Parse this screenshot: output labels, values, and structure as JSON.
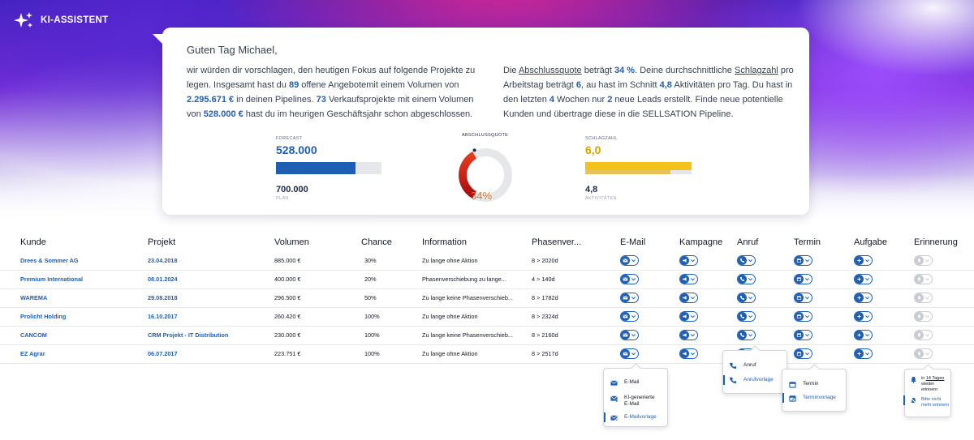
{
  "brand": {
    "name": "KI-ASSISTENT",
    "icon": "sparkles-icon"
  },
  "assistant": {
    "greeting": "Guten Tag Michael,",
    "left": {
      "t1": "wir würden dir vorschlagen, den heutigen Fokus auf folgende Projekte zu legen. Insgesamt hast du ",
      "open_offers": "89",
      "t2": " offene Angebotemit einem Volumen von ",
      "offer_volume": "2.295.671 €",
      "t3": " in deinen Pipelines. ",
      "sales_projects": "73",
      "t4": " Verkaufsprojekte mit einem Volumen von ",
      "closed_volume": "528.000 €",
      "t5": " hast du im heurigen Geschäftsjahr schon abgeschlossen."
    },
    "right": {
      "t1": "Die ",
      "closing_rate_term": "Abschlussquote",
      "t2": " beträgt ",
      "closing_rate": "34 %",
      "t3": ". Deine durchschnittliche ",
      "activity_term": "Schlagzahl",
      "t4": " pro Arbeitstag beträgt ",
      "activity_rate": "6",
      "t5": ", au hast im Schnitt ",
      "avg_activities": "4,8",
      "t6": " Aktivitäten pro Tag. Du hast in den letzten ",
      "weeks": "4",
      "t7": " Wochen nur ",
      "new_leads": "2",
      "t8": " neue Leads erstellt. Finde neue potentielle Kunden und übertrage diese in die SELLSATION Pipeline."
    }
  },
  "kpis": {
    "forecast": {
      "label": "FORECAST",
      "value": "528.000",
      "plan_value": "700.000",
      "plan_label": "PLAN",
      "fraction": 0.754,
      "color": "#1e5fb4"
    },
    "closing": {
      "label": "ABSCHLUSSQUOTE",
      "value": "34%",
      "fraction": 0.34,
      "color_start": "#e53b1f",
      "color_end": "#a80f0f"
    },
    "activity": {
      "label": "SCHLAGZAHL",
      "value": "6,0",
      "sub_value": "4,8",
      "sub_label": "AKTIVITÄTEN",
      "fraction": 1.0,
      "sub_fraction": 0.8,
      "color": "#f3c21b"
    }
  },
  "table": {
    "headers": [
      "Kunde",
      "Projekt",
      "Volumen",
      "Chance",
      "Information",
      "Phasenver...",
      "E-Mail",
      "Kampagne",
      "Anruf",
      "Termin",
      "Aufgabe",
      "Erinnerung"
    ],
    "rows": [
      {
        "kunde": "Drees & Sommer AG",
        "projekt": "23.04.2018",
        "volumen": "885.000 €",
        "chance": "30%",
        "info": "Zu lange ohne Aktion",
        "phase": "8 > 2020d"
      },
      {
        "kunde": "Premium International",
        "projekt": "08.01.2024",
        "volumen": "400.000 €",
        "chance": "20%",
        "info": "Phasenverschiebung zu lange...",
        "phase": "4 > 140d"
      },
      {
        "kunde": "WAREMA",
        "projekt": "29.08.2018",
        "volumen": "296.500 €",
        "chance": "50%",
        "info": "Zu lange keine Phasenverschieb...",
        "phase": "8 > 1782d"
      },
      {
        "kunde": "Prolicht Holding",
        "projekt": "16.10.2017",
        "volumen": "260.420 €",
        "chance": "100%",
        "info": "Zu lange ohne Aktion",
        "phase": "8 > 2324d"
      },
      {
        "kunde": "CANCOM",
        "projekt": "CRM Projekt - IT Distribution",
        "volumen": "230.000 €",
        "chance": "100%",
        "info": "Zu lange keine Phasenverschieb...",
        "phase": "8 > 2160d"
      },
      {
        "kunde": "EZ Agrar",
        "projekt": "06.07.2017",
        "volumen": "223.751 €",
        "chance": "100%",
        "info": "Zu lange ohne Aktion",
        "phase": "8 > 2517d"
      }
    ]
  },
  "menus": {
    "email": [
      "E-Mail",
      "KI-generierte",
      "E-Mail",
      "E-Mailvorlage"
    ],
    "call": [
      "Anruf",
      "Anrufvorlage"
    ],
    "appointment": [
      "Termin",
      "Terminvorlage"
    ],
    "reminder": [
      "in",
      "14 Tagen",
      "wieder erinnern",
      "Bitte nicht",
      "mehr erinnern"
    ]
  },
  "colors": {
    "accent": "#1e5fb4",
    "inactive": "#c9ccd2"
  }
}
